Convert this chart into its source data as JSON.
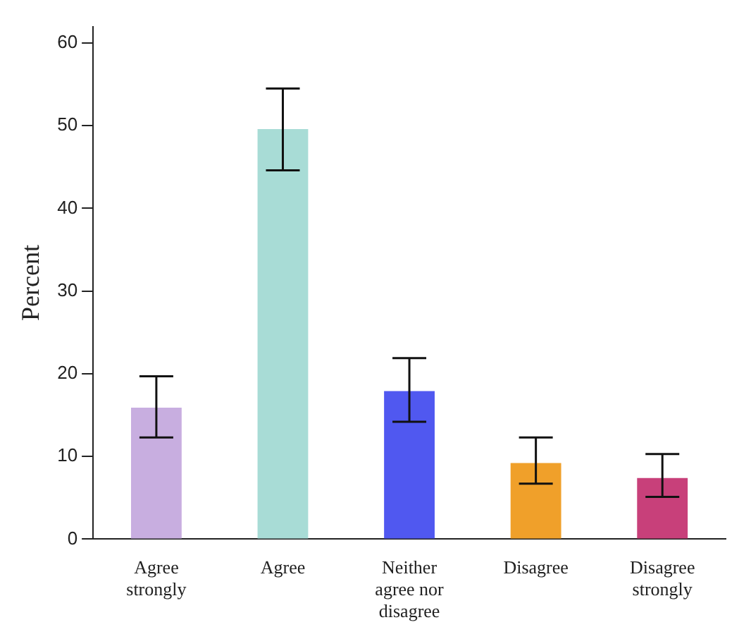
{
  "chart_data": {
    "type": "bar",
    "ylabel": "Percent",
    "categories": [
      "Agree strongly",
      "Agree",
      "Neither agree nor disagree",
      "Disagree",
      "Disagree strongly"
    ],
    "values": [
      15.9,
      49.6,
      17.9,
      9.2,
      7.4
    ],
    "errors": [
      [
        12.3,
        19.7
      ],
      [
        44.6,
        54.5
      ],
      [
        14.2,
        21.9
      ],
      [
        6.7,
        12.3
      ],
      [
        5.1,
        10.3
      ]
    ],
    "colors": [
      "#c8aee0",
      "#a8dcd6",
      "#5058f0",
      "#f0a02a",
      "#c8407a"
    ],
    "ylim": [
      0,
      62
    ],
    "yticks": [
      0,
      10,
      20,
      30,
      40,
      50,
      60
    ],
    "grid": false,
    "legend": false
  }
}
